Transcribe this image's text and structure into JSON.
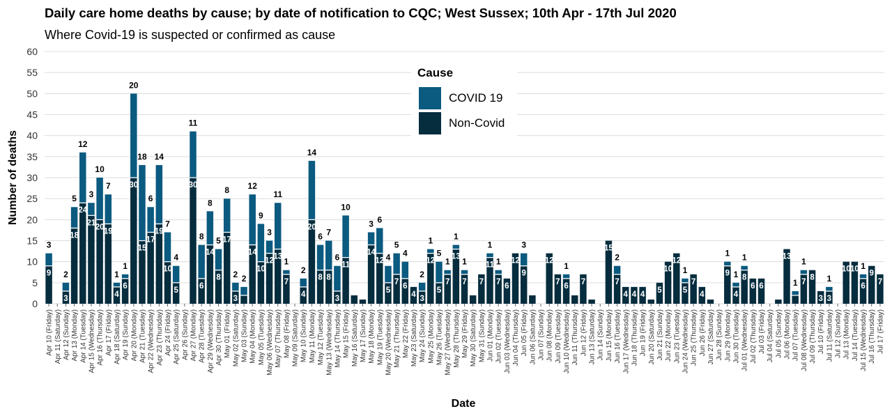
{
  "title": "Daily care home deaths by cause; by date of notification to CQC; West Sussex; 10th Apr - 17th Jul 2020",
  "subtitle": "Where Covid-19 is suspected or confirmed as cause",
  "legend": {
    "title": "Cause",
    "items": [
      {
        "label": "COVID 19",
        "color": "#0b5a80"
      },
      {
        "label": "Non-Covid",
        "color": "#062d3e"
      }
    ]
  },
  "chart_data": {
    "type": "bar",
    "stacked": true,
    "xlabel": "Date",
    "ylabel": "Number of deaths",
    "ylim": [
      0,
      60
    ],
    "yticks": [
      0,
      5,
      10,
      15,
      20,
      25,
      30,
      35,
      40,
      45,
      50,
      55,
      60
    ],
    "grid": true,
    "legend_position": "top-center",
    "categories": [
      "Apr 10 (Friday)",
      "Apr 11 (Saturday)",
      "Apr 12 (Sunday)",
      "Apr 13 (Monday)",
      "Apr 14 (Tuesday)",
      "Apr 15 (Wednesday)",
      "Apr 16 (Thursday)",
      "Apr 17 (Friday)",
      "Apr 18 (Saturday)",
      "Apr 19 (Sunday)",
      "Apr 20 (Monday)",
      "Apr 21 (Tuesday)",
      "Apr 22 (Wednesday)",
      "Apr 23 (Thursday)",
      "Apr 24 (Friday)",
      "Apr 25 (Saturday)",
      "Apr 26 (Sunday)",
      "Apr 27 (Monday)",
      "Apr 28 (Tuesday)",
      "Apr 29 (Wednesday)",
      "Apr 30 (Thursday)",
      "May 01 (Friday)",
      "May 02 (Saturday)",
      "May 03 (Sunday)",
      "May 04 (Monday)",
      "May 05 (Tuesday)",
      "May 06 (Wednesday)",
      "May 07 (Thursday)",
      "May 08 (Friday)",
      "May 09 (Saturday)",
      "May 10 (Sunday)",
      "May 11 (Monday)",
      "May 12 (Tuesday)",
      "May 13 (Wednesday)",
      "May 14 (Thursday)",
      "May 15 (Friday)",
      "May 16 (Saturday)",
      "May 17 (Sunday)",
      "May 18 (Monday)",
      "May 19 (Tuesday)",
      "May 20 (Wednesday)",
      "May 21 (Thursday)",
      "May 22 (Friday)",
      "May 23 (Saturday)",
      "May 24 (Sunday)",
      "May 25 (Monday)",
      "May 26 (Tuesday)",
      "May 27 (Wednesday)",
      "May 28 (Thursday)",
      "May 29 (Friday)",
      "May 30 (Saturday)",
      "May 31 (Sunday)",
      "Jun 01 (Monday)",
      "Jun 02 (Tuesday)",
      "Jun 03 (Wednesday)",
      "Jun 04 (Thursday)",
      "Jun 05 (Friday)",
      "Jun 06 (Saturday)",
      "Jun 07 (Sunday)",
      "Jun 08 (Monday)",
      "Jun 09 (Tuesday)",
      "Jun 10 (Wednesday)",
      "Jun 11 (Thursday)",
      "Jun 12 (Friday)",
      "Jun 13 (Saturday)",
      "Jun 14 (Sunday)",
      "Jun 15 (Monday)",
      "Jun 16 (Tuesday)",
      "Jun 17 (Wednesday)",
      "Jun 18 (Thursday)",
      "Jun 19 (Friday)",
      "Jun 20 (Saturday)",
      "Jun 21 (Sunday)",
      "Jun 22 (Monday)",
      "Jun 23 (Tuesday)",
      "Jun 24 (Wednesday)",
      "Jun 25 (Thursday)",
      "Jun 26 (Friday)",
      "Jun 27 (Saturday)",
      "Jun 28 (Sunday)",
      "Jun 29 (Monday)",
      "Jun 30 (Tuesday)",
      "Jul 01 (Wednesday)",
      "Jul 02 (Thursday)",
      "Jul 03 (Friday)",
      "Jul 04 (Saturday)",
      "Jul 05 (Sunday)",
      "Jul 06 (Monday)",
      "Jul 07 (Tuesday)",
      "Jul 08 (Wednesday)",
      "Jul 09 (Thursday)",
      "Jul 10 (Friday)",
      "Jul 11 (Saturday)",
      "Jul 12 (Sunday)",
      "Jul 13 (Monday)",
      "Jul 14 (Tuesday)",
      "Jul 15 (Wednesday)",
      "Jul 16 (Thursday)",
      "Jul 17 (Friday)"
    ],
    "series": [
      {
        "name": "Non-Covid",
        "color": "#062d3e",
        "values": [
          9,
          0,
          3,
          18,
          24,
          21,
          20,
          19,
          4,
          6,
          30,
          15,
          17,
          19,
          10,
          5,
          0,
          30,
          6,
          14,
          8,
          17,
          3,
          2,
          14,
          10,
          12,
          13,
          7,
          0,
          4,
          20,
          8,
          8,
          3,
          11,
          2,
          1,
          14,
          12,
          5,
          7,
          6,
          4,
          3,
          12,
          5,
          7,
          13,
          7,
          2,
          7,
          11,
          7,
          6,
          12,
          9,
          2,
          0,
          12,
          7,
          6,
          2,
          7,
          1,
          0,
          15,
          7,
          4,
          4,
          4,
          1,
          5,
          10,
          12,
          5,
          7,
          4,
          1,
          0,
          9,
          4,
          8,
          6,
          6,
          0,
          1,
          13,
          2,
          7,
          8,
          3,
          3,
          0,
          10,
          10,
          6,
          9,
          7
        ]
      },
      {
        "name": "COVID 19",
        "color": "#0b5a80",
        "values": [
          3,
          0,
          2,
          5,
          12,
          3,
          10,
          7,
          1,
          1,
          20,
          18,
          6,
          14,
          7,
          4,
          0,
          11,
          8,
          8,
          5,
          8,
          2,
          2,
          12,
          9,
          3,
          11,
          1,
          0,
          2,
          14,
          6,
          7,
          6,
          10,
          0,
          0,
          3,
          6,
          4,
          5,
          4,
          0,
          2,
          1,
          5,
          1,
          1,
          1,
          0,
          0,
          1,
          1,
          0,
          0,
          3,
          0,
          0,
          0,
          0,
          1,
          0,
          0,
          0,
          0,
          0,
          2,
          0,
          0,
          0,
          0,
          0,
          0,
          0,
          1,
          0,
          0,
          0,
          0,
          1,
          1,
          1,
          0,
          0,
          0,
          0,
          0,
          1,
          1,
          0,
          0,
          1,
          0,
          0,
          0,
          1,
          0,
          0
        ]
      }
    ]
  }
}
